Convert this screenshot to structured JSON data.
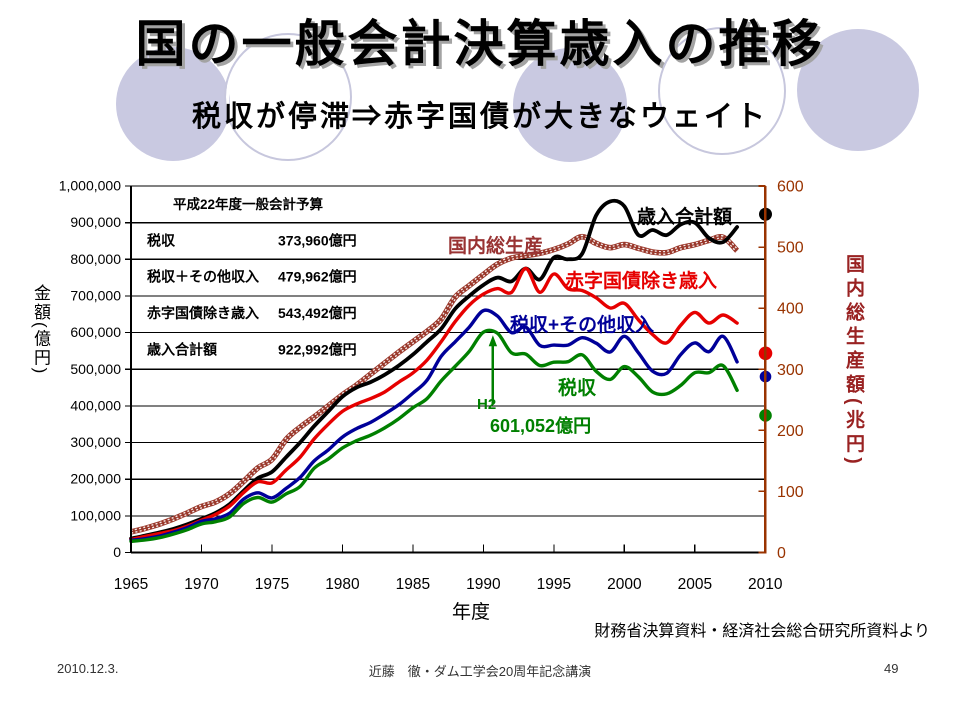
{
  "slide": {
    "title": "国の一般会計決算歳入の推移",
    "subtitle": "税収が停滞⇒赤字国債が大きなウェイト",
    "source_note": "財務省決算資料・経済社会総合研究所資料より",
    "footer": {
      "date": "2010.12.3.",
      "center": "近藤　徹・ダム工学会20周年記念講演",
      "page": "49"
    }
  },
  "chart_data": {
    "type": "line",
    "xlabel": "年度",
    "ylabel_left": "金額(億円)",
    "ylabel_right": "国内総生産額(兆円)",
    "x_ticks": [
      1965,
      1970,
      1975,
      1980,
      1985,
      1990,
      1995,
      2000,
      2005,
      2010
    ],
    "ylim_left": [
      0,
      1000000
    ],
    "ylim_right": [
      0,
      600
    ],
    "ytick_step_left": 100000,
    "ytick_step_right": 100,
    "years": [
      1965,
      1966,
      1967,
      1968,
      1969,
      1970,
      1971,
      1972,
      1973,
      1974,
      1975,
      1976,
      1977,
      1978,
      1979,
      1980,
      1981,
      1982,
      1983,
      1984,
      1985,
      1986,
      1987,
      1988,
      1989,
      1990,
      1991,
      1992,
      1993,
      1994,
      1995,
      1996,
      1997,
      1998,
      1999,
      2000,
      2001,
      2002,
      2003,
      2004,
      2005,
      2006,
      2007,
      2008
    ],
    "series": [
      {
        "name": "国内総生産",
        "axis": "right",
        "color": "#9a382b",
        "style": "hatched",
        "values": [
          33.8,
          39.5,
          46.4,
          54.9,
          64.9,
          75.3,
          82.9,
          96.4,
          116.7,
          138.5,
          152.4,
          185,
          205,
          222,
          240,
          258,
          274,
          292,
          310,
          328,
          345,
          362,
          382,
          418,
          437,
          455,
          472,
          482,
          486,
          490,
          496,
          505,
          517,
          506,
          499,
          504,
          498,
          492,
          491,
          499,
          504,
          511,
          516,
          494
        ]
      },
      {
        "name": "歳入合計額",
        "axis": "left",
        "color": "#000000",
        "values": [
          37800,
          46000,
          54500,
          64500,
          77000,
          92000,
          108000,
          132000,
          169000,
          203000,
          220000,
          260000,
          300000,
          345000,
          385000,
          425000,
          450000,
          465000,
          485000,
          510000,
          540000,
          575000,
          610000,
          665000,
          700000,
          730000,
          750000,
          740000,
          775000,
          745000,
          805000,
          800000,
          815000,
          920000,
          958000,
          945000,
          866000,
          880000,
          866000,
          895000,
          900000,
          858000,
          847000,
          888000
        ]
      },
      {
        "name": "赤字国債除き歳入",
        "axis": "left",
        "color": "#e60000",
        "values": [
          35500,
          44000,
          51500,
          59500,
          72000,
          88000,
          104000,
          127000,
          164000,
          193000,
          190000,
          225000,
          260000,
          310000,
          350000,
          385000,
          405000,
          420000,
          438000,
          465000,
          490000,
          525000,
          575000,
          630000,
          675000,
          705000,
          720000,
          710000,
          775000,
          710000,
          760000,
          720000,
          715000,
          695000,
          667000,
          680000,
          635000,
          595000,
          572000,
          620000,
          655000,
          626000,
          648000,
          626000
        ]
      },
      {
        "name": "税収+その他収入",
        "axis": "left",
        "color": "#000099",
        "values": [
          33500,
          37700,
          44500,
          55100,
          68000,
          84800,
          92300,
          107600,
          146000,
          163000,
          149000,
          175000,
          205000,
          250000,
          280000,
          315000,
          338000,
          355000,
          378000,
          403000,
          435000,
          470000,
          535000,
          575000,
          615000,
          660000,
          645000,
          600000,
          615000,
          565000,
          566000,
          566000,
          586000,
          571000,
          547000,
          590000,
          545000,
          495000,
          489000,
          540000,
          572000,
          548000,
          590000,
          520000
        ]
      },
      {
        "name": "税収",
        "axis": "left",
        "color": "#008000",
        "values": [
          30500,
          34200,
          40300,
          50100,
          62200,
          77800,
          84100,
          97100,
          134000,
          150000,
          137500,
          160000,
          180000,
          230000,
          255000,
          285000,
          305000,
          320000,
          340000,
          365000,
          395000,
          420000,
          468000,
          508000,
          549000,
          601052,
          598000,
          544500,
          541300,
          510300,
          519300,
          520600,
          539400,
          494300,
          472300,
          507100,
          479500,
          438300,
          432800,
          455900,
          490700,
          490700,
          510000,
          442700
        ]
      }
    ],
    "budget_box": {
      "header": "平成22年度一般会計予算",
      "rows": [
        {
          "label": "税収",
          "value": "373,960億円",
          "amount": 373960,
          "color": "#008000"
        },
        {
          "label": "税収＋その他収入",
          "value": "479,962億円",
          "amount": 479962,
          "color": "#000099"
        },
        {
          "label": "赤字国債除き歳入",
          "value": "543,492億円",
          "amount": 543492,
          "color": "#e60000"
        },
        {
          "label": "歳入合計額",
          "value": "922,992億円",
          "amount": 922992,
          "color": "#000000"
        }
      ]
    },
    "annotation": {
      "label": "H2",
      "value_label": "601,052億円",
      "year": 1990,
      "value": 601052
    }
  }
}
